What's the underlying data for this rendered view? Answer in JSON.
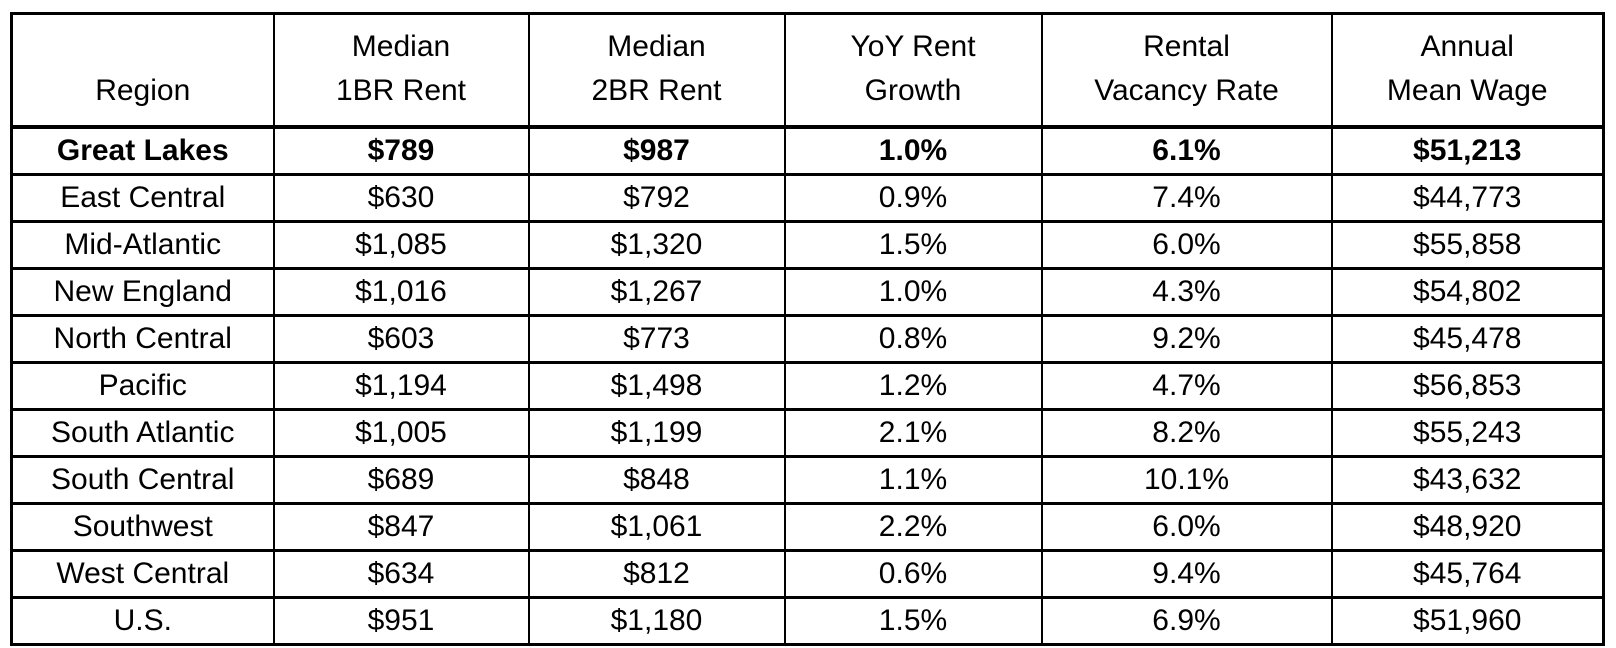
{
  "table": {
    "header": [
      [
        "Region"
      ],
      [
        "Median",
        "1BR Rent"
      ],
      [
        "Median",
        "2BR Rent"
      ],
      [
        "YoY Rent",
        "Growth"
      ],
      [
        "Rental",
        "Vacancy Rate"
      ],
      [
        "Annual",
        "Mean Wage"
      ]
    ],
    "rows": [
      [
        "Great Lakes",
        "$789",
        "$987",
        "1.0%",
        "6.1%",
        "$51,213"
      ],
      [
        "East Central",
        "$630",
        "$792",
        "0.9%",
        "7.4%",
        "$44,773"
      ],
      [
        "Mid-Atlantic",
        "$1,085",
        "$1,320",
        "1.5%",
        "6.0%",
        "$55,858"
      ],
      [
        "New England",
        "$1,016",
        "$1,267",
        "1.0%",
        "4.3%",
        "$54,802"
      ],
      [
        "North Central",
        "$603",
        "$773",
        "0.8%",
        "9.2%",
        "$45,478"
      ],
      [
        "Pacific",
        "$1,194",
        "$1,498",
        "1.2%",
        "4.7%",
        "$56,853"
      ],
      [
        "South Atlantic",
        "$1,005",
        "$1,199",
        "2.1%",
        "8.2%",
        "$55,243"
      ],
      [
        "South Central",
        "$689",
        "$848",
        "1.1%",
        "10.1%",
        "$43,632"
      ],
      [
        "Southwest",
        "$847",
        "$1,061",
        "2.2%",
        "6.0%",
        "$48,920"
      ],
      [
        "West Central",
        "$634",
        "$812",
        "0.6%",
        "9.4%",
        "$45,764"
      ],
      [
        "U.S.",
        "$951",
        "$1,180",
        "1.5%",
        "6.9%",
        "$51,960"
      ]
    ],
    "bold_row_index": 0,
    "text_color": "#000000",
    "border_color": "#000000",
    "background_color": "#ffffff"
  },
  "chart_data": {
    "type": "table",
    "columns": [
      "Region",
      "Median 1BR Rent",
      "Median 2BR Rent",
      "YoY Rent Growth",
      "Rental Vacancy Rate",
      "Annual Mean Wage"
    ],
    "highlighted_row": "Great Lakes",
    "rows": [
      {
        "region": "Great Lakes",
        "median_1br_rent": 789,
        "median_2br_rent": 987,
        "yoy_rent_growth_pct": 1.0,
        "rental_vacancy_rate_pct": 6.1,
        "annual_mean_wage": 51213
      },
      {
        "region": "East Central",
        "median_1br_rent": 630,
        "median_2br_rent": 792,
        "yoy_rent_growth_pct": 0.9,
        "rental_vacancy_rate_pct": 7.4,
        "annual_mean_wage": 44773
      },
      {
        "region": "Mid-Atlantic",
        "median_1br_rent": 1085,
        "median_2br_rent": 1320,
        "yoy_rent_growth_pct": 1.5,
        "rental_vacancy_rate_pct": 6.0,
        "annual_mean_wage": 55858
      },
      {
        "region": "New England",
        "median_1br_rent": 1016,
        "median_2br_rent": 1267,
        "yoy_rent_growth_pct": 1.0,
        "rental_vacancy_rate_pct": 4.3,
        "annual_mean_wage": 54802
      },
      {
        "region": "North Central",
        "median_1br_rent": 603,
        "median_2br_rent": 773,
        "yoy_rent_growth_pct": 0.8,
        "rental_vacancy_rate_pct": 9.2,
        "annual_mean_wage": 45478
      },
      {
        "region": "Pacific",
        "median_1br_rent": 1194,
        "median_2br_rent": 1498,
        "yoy_rent_growth_pct": 1.2,
        "rental_vacancy_rate_pct": 4.7,
        "annual_mean_wage": 56853
      },
      {
        "region": "South Atlantic",
        "median_1br_rent": 1005,
        "median_2br_rent": 1199,
        "yoy_rent_growth_pct": 2.1,
        "rental_vacancy_rate_pct": 8.2,
        "annual_mean_wage": 55243
      },
      {
        "region": "South Central",
        "median_1br_rent": 689,
        "median_2br_rent": 848,
        "yoy_rent_growth_pct": 1.1,
        "rental_vacancy_rate_pct": 10.1,
        "annual_mean_wage": 43632
      },
      {
        "region": "Southwest",
        "median_1br_rent": 847,
        "median_2br_rent": 1061,
        "yoy_rent_growth_pct": 2.2,
        "rental_vacancy_rate_pct": 6.0,
        "annual_mean_wage": 48920
      },
      {
        "region": "West Central",
        "median_1br_rent": 634,
        "median_2br_rent": 812,
        "yoy_rent_growth_pct": 0.6,
        "rental_vacancy_rate_pct": 9.4,
        "annual_mean_wage": 45764
      },
      {
        "region": "U.S.",
        "median_1br_rent": 951,
        "median_2br_rent": 1180,
        "yoy_rent_growth_pct": 1.5,
        "rental_vacancy_rate_pct": 6.9,
        "annual_mean_wage": 51960
      }
    ]
  }
}
